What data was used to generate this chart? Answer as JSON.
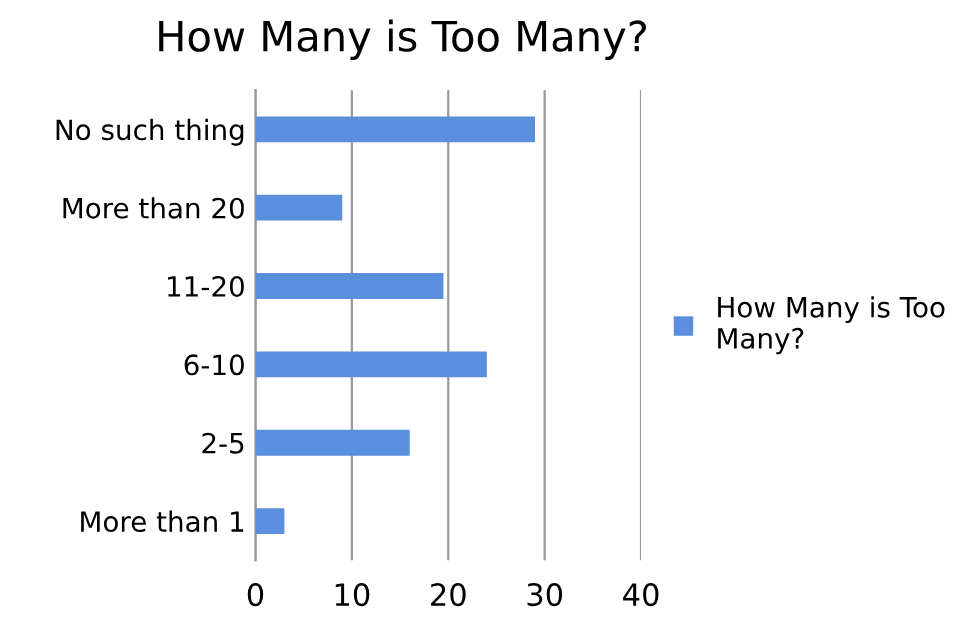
{
  "chart_data": {
    "type": "bar",
    "orientation": "horizontal",
    "title": "How Many is Too Many?",
    "categories": [
      "No such thing",
      "More than 20",
      "11-20",
      "6-10",
      "2-5",
      "More than 1"
    ],
    "series": [
      {
        "name": "How Many is Too Many?",
        "color": "#5b8fde",
        "values": [
          29,
          9,
          19.5,
          24,
          16,
          3
        ]
      }
    ],
    "xlim": [
      0,
      40
    ],
    "xticks": [
      0,
      10,
      20,
      30,
      40
    ],
    "grid": "x",
    "legend": "right"
  }
}
